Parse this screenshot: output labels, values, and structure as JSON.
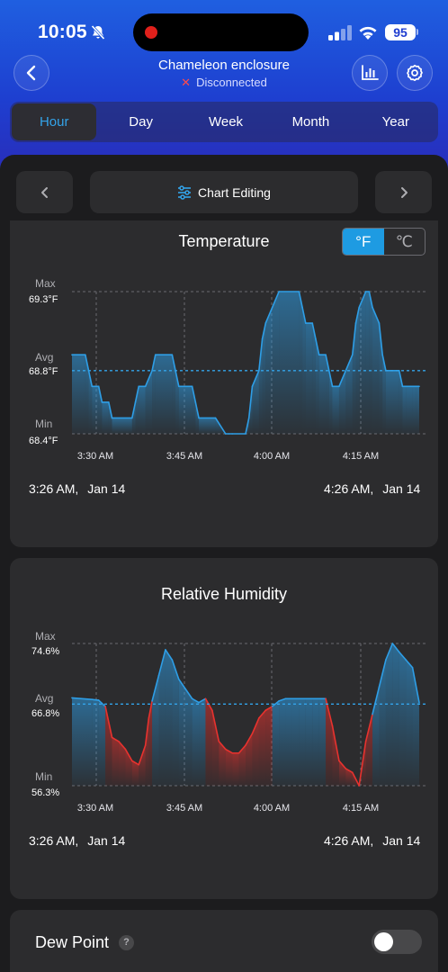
{
  "status_bar": {
    "time": "10:05",
    "battery": "95"
  },
  "header": {
    "title": "Chameleon enclosure",
    "status": "Disconnected"
  },
  "tabs": [
    {
      "label": "Hour",
      "active": true
    },
    {
      "label": "Day",
      "active": false
    },
    {
      "label": "Week",
      "active": false
    },
    {
      "label": "Month",
      "active": false
    },
    {
      "label": "Year",
      "active": false
    }
  ],
  "toolbar": {
    "edit_label": "Chart Editing"
  },
  "temperature": {
    "title": "Temperature",
    "units": {
      "f": "°F",
      "c": "℃",
      "selected": "F"
    },
    "axis": {
      "max_label": "Max",
      "max_value": "69.3°F",
      "avg_label": "Avg",
      "avg_value": "68.8°F",
      "min_label": "Min",
      "min_value": "68.4°F"
    },
    "x_ticks": [
      "3:30 AM",
      "3:45 AM",
      "4:00 AM",
      "4:15 AM"
    ],
    "start": {
      "time": "3:26 AM,",
      "date": "Jan 14"
    },
    "end": {
      "time": "4:26 AM,",
      "date": "Jan 14"
    }
  },
  "humidity": {
    "title": "Relative Humidity",
    "axis": {
      "max_label": "Max",
      "max_value": "74.6%",
      "avg_label": "Avg",
      "avg_value": "66.8%",
      "min_label": "Min",
      "min_value": "56.3%"
    },
    "x_ticks": [
      "3:30 AM",
      "3:45 AM",
      "4:00 AM",
      "4:15 AM"
    ],
    "start": {
      "time": "3:26 AM,",
      "date": "Jan 14"
    },
    "end": {
      "time": "4:26 AM,",
      "date": "Jan 14"
    }
  },
  "dew_point": {
    "label": "Dew Point",
    "help": "?",
    "enabled": false
  },
  "colors": {
    "accent": "#33a4ea",
    "temp_line": "#2e9ee6",
    "hum_high": "#2e9ee6",
    "hum_low": "#e8322e",
    "bg": "#1c1c1e",
    "card": "#2c2c2e"
  },
  "chart_data": [
    {
      "type": "line",
      "title": "Temperature",
      "unit": "°F",
      "x": [
        0,
        2,
        2.5,
        3,
        4,
        4.5,
        5.5,
        6,
        9,
        9.5,
        10,
        11,
        12,
        12.5,
        13,
        15,
        15.5,
        16,
        18,
        18.5,
        19,
        21.5,
        23,
        23.5,
        24,
        26,
        26.5,
        27,
        28,
        28.5,
        29,
        30,
        31,
        34,
        34.5,
        35,
        36,
        36.5,
        37,
        38,
        38.5,
        39,
        40,
        41,
        42,
        42.5,
        43,
        44,
        44.5,
        45,
        46,
        46.5,
        47,
        49,
        49.5,
        50,
        51,
        51.5,
        52
      ],
      "y": [
        68.9,
        68.9,
        68.8,
        68.7,
        68.7,
        68.6,
        68.6,
        68.5,
        68.5,
        68.6,
        68.7,
        68.7,
        68.8,
        68.9,
        68.9,
        68.9,
        68.8,
        68.7,
        68.7,
        68.6,
        68.5,
        68.5,
        68.4,
        68.4,
        68.4,
        68.4,
        68.5,
        68.7,
        68.8,
        69.0,
        69.1,
        69.2,
        69.3,
        69.3,
        69.2,
        69.1,
        69.1,
        69.0,
        68.9,
        68.9,
        68.8,
        68.7,
        68.7,
        68.8,
        68.9,
        69.1,
        69.2,
        69.3,
        69.3,
        69.2,
        69.1,
        68.9,
        68.8,
        68.8,
        68.7,
        68.7,
        68.7,
        68.7,
        68.7
      ],
      "x_ticks": [
        "3:30 AM",
        "3:45 AM",
        "4:00 AM",
        "4:15 AM"
      ],
      "y_range": [
        68.4,
        69.3
      ],
      "average": 68.8
    },
    {
      "type": "line",
      "title": "Relative Humidity",
      "unit": "%",
      "x": [
        0,
        3,
        4,
        5,
        6,
        7,
        8,
        9,
        10,
        11,
        11.5,
        12,
        13,
        14,
        15,
        16,
        18,
        19,
        20,
        21,
        22,
        23,
        24,
        25,
        26,
        27,
        28,
        29,
        30,
        31,
        32,
        33,
        34,
        35,
        36,
        37,
        38,
        39,
        40,
        41,
        42,
        43,
        44,
        45,
        46,
        47,
        48,
        49,
        50,
        51,
        52
      ],
      "y": [
        67.6,
        67.4,
        67.3,
        66.5,
        62.5,
        62.0,
        61.0,
        59.5,
        59.0,
        61.5,
        65.0,
        67.2,
        70.5,
        73.8,
        72.5,
        70.0,
        67.5,
        67.0,
        67.5,
        66.0,
        62.0,
        61.0,
        60.5,
        60.5,
        61.5,
        63.0,
        65.0,
        66.0,
        66.5,
        67.2,
        67.5,
        67.5,
        67.5,
        67.5,
        67.5,
        67.5,
        67.5,
        64.0,
        59.5,
        58.5,
        58.0,
        56.3,
        62.0,
        65.5,
        69.0,
        72.5,
        74.6,
        73.5,
        72.5,
        71.5,
        67.0
      ],
      "x_ticks": [
        "3:30 AM",
        "3:45 AM",
        "4:00 AM",
        "4:15 AM"
      ],
      "y_range": [
        56.3,
        74.6
      ],
      "average": 66.8
    }
  ]
}
